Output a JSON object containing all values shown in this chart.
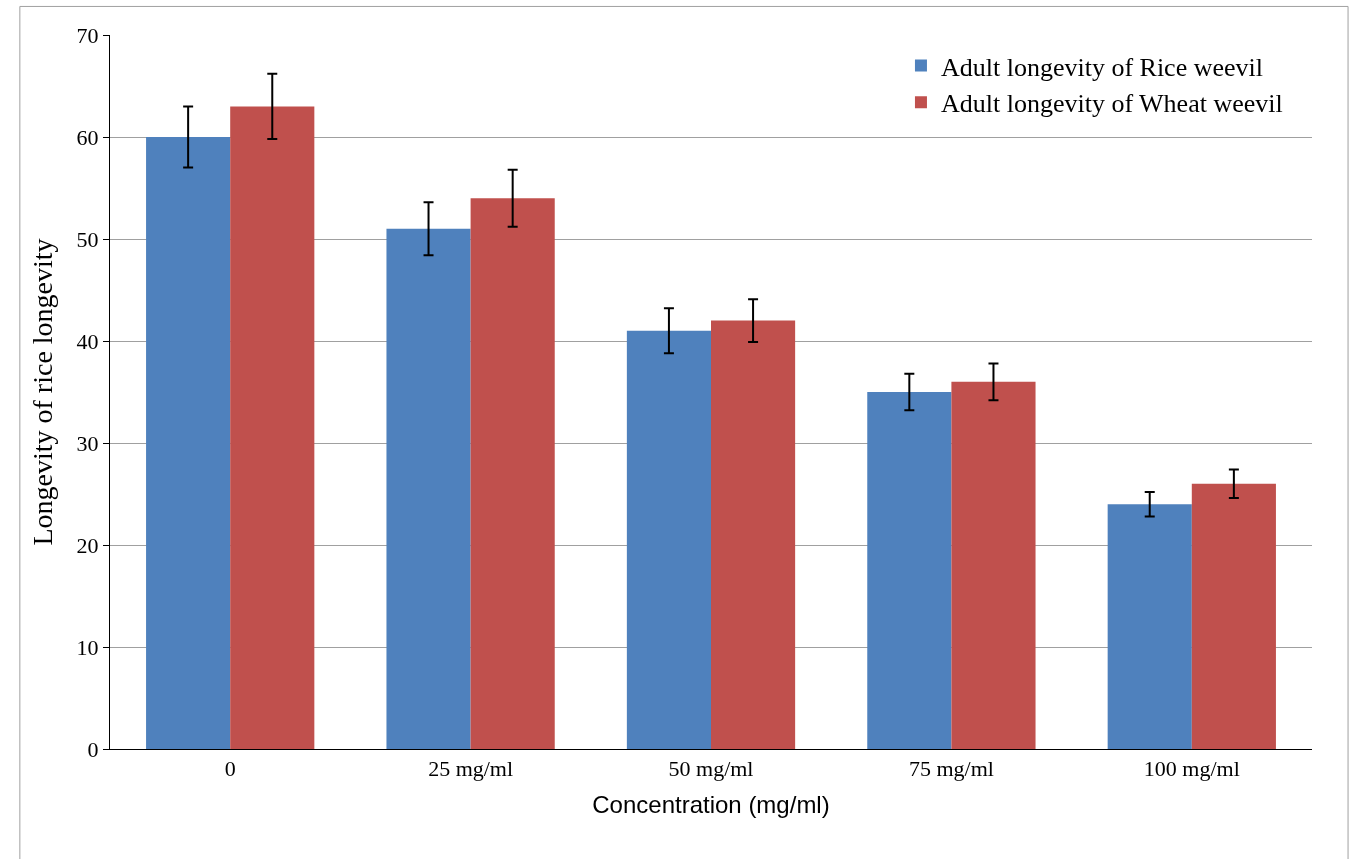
{
  "chart_data": {
    "type": "bar",
    "xlabel": "Concentration (mg/ml)",
    "ylabel": "Longevity of rice longevity",
    "categories": [
      "0",
      "25 mg/ml",
      "50 mg/ml",
      "75 mg/ml",
      "100 mg/ml"
    ],
    "series": [
      {
        "name": "Adult longevity of Rice weevil",
        "color": "#4f81bd",
        "values": [
          60,
          51,
          41,
          35,
          24
        ],
        "errors": [
          3,
          2.6,
          2.2,
          1.8,
          1.2
        ]
      },
      {
        "name": "Adult longevity of Wheat weevil",
        "color": "#c0504d",
        "values": [
          63,
          54,
          42,
          36,
          26
        ],
        "errors": [
          3.2,
          2.8,
          2.1,
          1.8,
          1.4
        ]
      }
    ],
    "ylim": [
      0,
      70
    ],
    "yticks": [
      0,
      10,
      20,
      30,
      40,
      50,
      60,
      70
    ],
    "grid": "y",
    "legend": "top right"
  }
}
